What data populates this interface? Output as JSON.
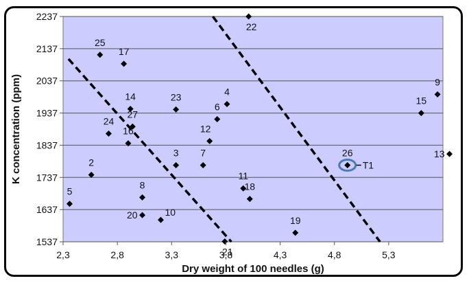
{
  "chart_data": {
    "type": "scatter",
    "xlabel": "Dry weight of 100 needles (g)",
    "ylabel": "K concentration (ppm)",
    "xlim": [
      2.3,
      5.8
    ],
    "ylim": [
      1537,
      2237
    ],
    "x_ticks": [
      "2,3",
      "2,8",
      "3,3",
      "3,8",
      "4,3",
      "4,8",
      "5,3"
    ],
    "x_tick_values": [
      2.3,
      2.8,
      3.3,
      3.8,
      4.3,
      4.8,
      5.3
    ],
    "y_ticks": [
      "1537",
      "1637",
      "1737",
      "1837",
      "1937",
      "2037",
      "2137",
      "2237"
    ],
    "y_tick_values": [
      1537,
      1637,
      1737,
      1837,
      1937,
      2037,
      2137,
      2237
    ],
    "grid": "horizontal",
    "plot_background": "#ccccff",
    "marker_color": "#000000",
    "highlight_color": "#4a7ab8",
    "points": [
      {
        "label": "25",
        "x": 2.64,
        "y": 2118
      },
      {
        "label": "17",
        "x": 2.86,
        "y": 2090
      },
      {
        "label": "14",
        "x": 2.92,
        "y": 1950
      },
      {
        "label": "24",
        "x": 2.72,
        "y": 1873
      },
      {
        "label": "16",
        "x": 2.9,
        "y": 1843
      },
      {
        "label": "27",
        "x": 2.94,
        "y": 1895
      },
      {
        "label": "2",
        "x": 2.56,
        "y": 1745
      },
      {
        "label": "5",
        "x": 2.36,
        "y": 1655
      },
      {
        "label": "8",
        "x": 3.03,
        "y": 1675
      },
      {
        "label": "20",
        "x": 3.03,
        "y": 1620
      },
      {
        "label": "10",
        "x": 3.2,
        "y": 1605
      },
      {
        "label": "23",
        "x": 3.34,
        "y": 1948
      },
      {
        "label": "3",
        "x": 3.34,
        "y": 1775
      },
      {
        "label": "7",
        "x": 3.59,
        "y": 1775
      },
      {
        "label": "12",
        "x": 3.65,
        "y": 1850
      },
      {
        "label": "6",
        "x": 3.72,
        "y": 1918
      },
      {
        "label": "4",
        "x": 3.81,
        "y": 1965
      },
      {
        "label": "21",
        "x": 3.79,
        "y": 1538
      },
      {
        "label": "11",
        "x": 3.96,
        "y": 1703
      },
      {
        "label": "18",
        "x": 4.02,
        "y": 1670
      },
      {
        "label": "22",
        "x": 4.01,
        "y": 2237
      },
      {
        "label": "19",
        "x": 4.44,
        "y": 1565
      },
      {
        "label": "26",
        "x": 4.92,
        "y": 1775
      },
      {
        "label": "15",
        "x": 5.6,
        "y": 1937
      },
      {
        "label": "9",
        "x": 5.75,
        "y": 1995
      },
      {
        "label": "13",
        "x": 5.86,
        "y": 1810
      }
    ],
    "highlight": {
      "label": "T1",
      "x": 4.92,
      "y": 1775
    },
    "trend_lines": [
      {
        "x1": 2.35,
        "y1": 2105,
        "x2": 3.85,
        "y2": 1537
      },
      {
        "x1": 3.68,
        "y1": 2237,
        "x2": 5.22,
        "y2": 1537
      }
    ]
  }
}
